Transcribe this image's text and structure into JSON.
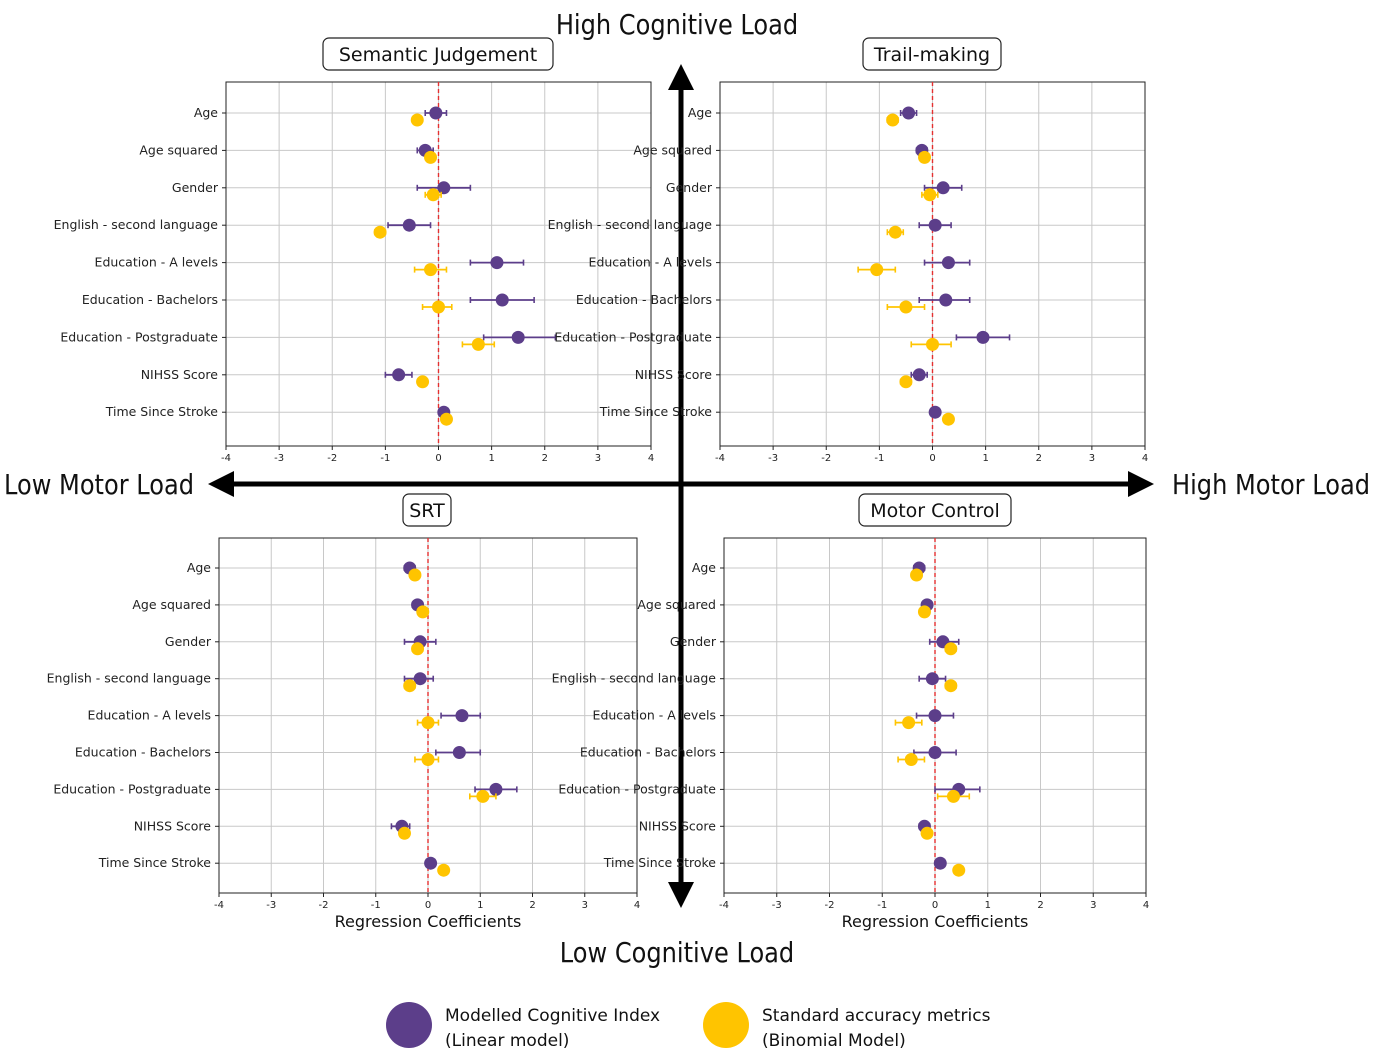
{
  "axes_labels": {
    "top": "High Cognitive Load",
    "bottom": "Low Cognitive Load",
    "left": "Low Motor Load",
    "right": "High Motor Load"
  },
  "legend": [
    {
      "label_line1": "Modelled Cognitive Index",
      "label_line2": "(Linear model)",
      "color": "#5c3e8a"
    },
    {
      "label_line1": "Standard accuracy metrics",
      "label_line2": "(Binomial Model)",
      "color": "#ffc400"
    }
  ],
  "colors": {
    "linear": "#5c3e8a",
    "binomial": "#ffc400",
    "zero_line": "#e53030",
    "grid": "#c8c8c8",
    "arrow": "#000000"
  },
  "chart_data": [
    {
      "type": "scatter",
      "title": "Semantic Judgement",
      "xlabel": "",
      "xlim": [
        -4,
        4
      ],
      "xticks": [
        -4,
        -3,
        -2,
        -1,
        0,
        1,
        2,
        3,
        4
      ],
      "categories": [
        "Age",
        "Age squared",
        "Gender",
        "English - second language",
        "Education - A levels",
        "Education - Bachelors",
        "Education - Postgraduate",
        "NIHSS Score",
        "Time Since Stroke"
      ],
      "series": [
        {
          "values": [
            -0.05,
            -0.25,
            0.1,
            -0.55,
            1.1,
            1.2,
            1.5,
            -0.75,
            0.1
          ],
          "err_low": [
            -0.25,
            -0.4,
            -0.4,
            -0.95,
            0.6,
            0.6,
            0.85,
            -1.0,
            0.05
          ],
          "err_high": [
            0.15,
            -0.1,
            0.6,
            -0.15,
            1.6,
            1.8,
            2.2,
            -0.5,
            0.15
          ]
        },
        {
          "values": [
            -0.4,
            -0.15,
            -0.1,
            -1.1,
            -0.15,
            0.0,
            0.75,
            -0.3,
            0.15
          ],
          "err_low": [
            -0.45,
            -0.2,
            -0.25,
            -1.2,
            -0.45,
            -0.3,
            0.45,
            -0.35,
            0.1
          ],
          "err_high": [
            -0.35,
            -0.1,
            0.05,
            -1.0,
            0.15,
            0.25,
            1.05,
            -0.25,
            0.2
          ]
        }
      ]
    },
    {
      "type": "scatter",
      "title": "Trail-making",
      "xlabel": "",
      "xlim": [
        -4,
        4
      ],
      "xticks": [
        -4,
        -3,
        -2,
        -1,
        0,
        1,
        2,
        3,
        4
      ],
      "categories": [
        "Age",
        "Age squared",
        "Gender",
        "English - second language",
        "Education - A levels",
        "Education - Bachelors",
        "Education - Postgraduate",
        "NIHSS Score",
        "Time Since Stroke"
      ],
      "series": [
        {
          "values": [
            -0.45,
            -0.2,
            0.2,
            0.05,
            0.3,
            0.25,
            0.95,
            -0.25,
            0.05
          ],
          "err_low": [
            -0.6,
            -0.3,
            -0.15,
            -0.25,
            -0.15,
            -0.25,
            0.45,
            -0.4,
            0.0
          ],
          "err_high": [
            -0.3,
            -0.1,
            0.55,
            0.35,
            0.7,
            0.7,
            1.45,
            -0.1,
            0.1
          ]
        },
        {
          "values": [
            -0.75,
            -0.15,
            -0.05,
            -0.7,
            -1.05,
            -0.5,
            0.0,
            -0.5,
            0.3
          ],
          "err_low": [
            -0.85,
            -0.2,
            -0.2,
            -0.85,
            -1.4,
            -0.85,
            -0.4,
            -0.6,
            0.25
          ],
          "err_high": [
            -0.65,
            -0.1,
            0.1,
            -0.55,
            -0.7,
            -0.15,
            0.35,
            -0.4,
            0.35
          ]
        }
      ]
    },
    {
      "type": "scatter",
      "title": "SRT",
      "xlabel": "Regression Coefficients",
      "xlim": [
        -4,
        4
      ],
      "xticks": [
        -4,
        -3,
        -2,
        -1,
        0,
        1,
        2,
        3,
        4
      ],
      "categories": [
        "Age",
        "Age squared",
        "Gender",
        "English - second language",
        "Education - A levels",
        "Education - Bachelors",
        "Education - Postgraduate",
        "NIHSS Score",
        "Time Since Stroke"
      ],
      "series": [
        {
          "values": [
            -0.35,
            -0.2,
            -0.15,
            -0.15,
            0.65,
            0.6,
            1.3,
            -0.5,
            0.05
          ],
          "err_low": [
            -0.45,
            -0.3,
            -0.45,
            -0.45,
            0.25,
            0.15,
            0.9,
            -0.7,
            0.0
          ],
          "err_high": [
            -0.25,
            -0.1,
            0.15,
            0.1,
            1.0,
            1.0,
            1.7,
            -0.35,
            0.1
          ]
        },
        {
          "values": [
            -0.25,
            -0.1,
            -0.2,
            -0.35,
            0.0,
            0.0,
            1.05,
            -0.45,
            0.3
          ],
          "err_low": [
            -0.3,
            -0.15,
            -0.3,
            -0.45,
            -0.2,
            -0.25,
            0.8,
            -0.5,
            0.25
          ],
          "err_high": [
            -0.2,
            -0.05,
            -0.1,
            -0.25,
            0.2,
            0.2,
            1.3,
            -0.4,
            0.35
          ]
        }
      ]
    },
    {
      "type": "scatter",
      "title": "Motor Control",
      "xlabel": "Regression Coefficients",
      "xlim": [
        -4,
        4
      ],
      "xticks": [
        -4,
        -3,
        -2,
        -1,
        0,
        1,
        2,
        3,
        4
      ],
      "categories": [
        "Age",
        "Age squared",
        "Gender",
        "English - second language",
        "Education - A levels",
        "Education - Bachelors",
        "Education - Postgraduate",
        "NIHSS Score",
        "Time Since Stroke"
      ],
      "series": [
        {
          "values": [
            -0.3,
            -0.15,
            0.15,
            -0.05,
            0.0,
            0.0,
            0.45,
            -0.2,
            0.1
          ],
          "err_low": [
            -0.4,
            -0.2,
            -0.1,
            -0.3,
            -0.35,
            -0.4,
            0.0,
            -0.3,
            0.05
          ],
          "err_high": [
            -0.2,
            -0.1,
            0.45,
            0.2,
            0.35,
            0.4,
            0.85,
            -0.1,
            0.15
          ]
        },
        {
          "values": [
            -0.35,
            -0.2,
            0.3,
            0.3,
            -0.5,
            -0.45,
            0.35,
            -0.15,
            0.45
          ],
          "err_low": [
            -0.4,
            -0.25,
            0.2,
            0.2,
            -0.75,
            -0.7,
            0.05,
            -0.2,
            0.4
          ],
          "err_high": [
            -0.3,
            -0.15,
            0.4,
            0.4,
            -0.25,
            -0.2,
            0.65,
            -0.1,
            0.5
          ]
        }
      ]
    }
  ]
}
